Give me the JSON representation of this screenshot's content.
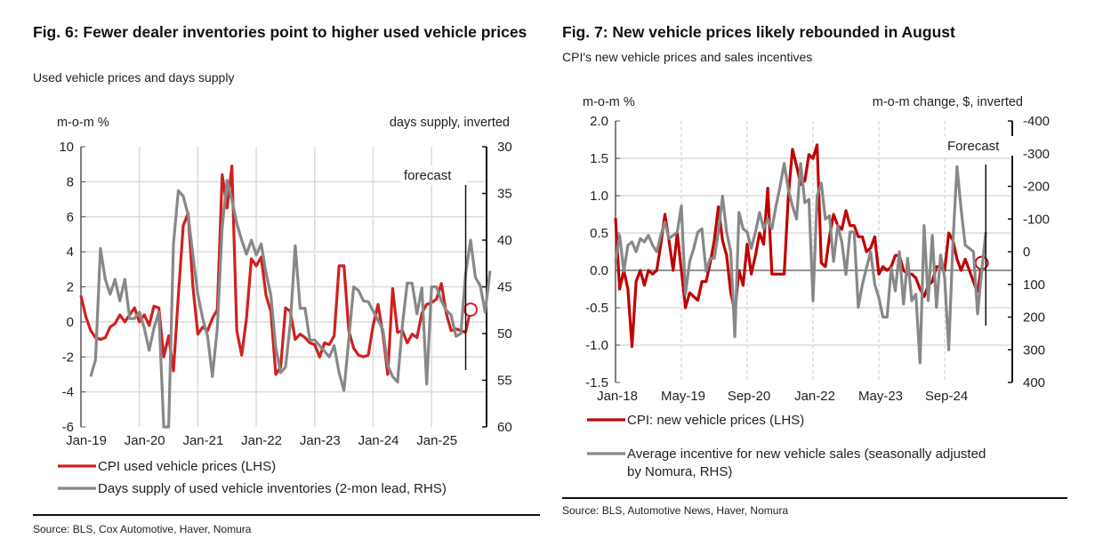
{
  "chart_data": [
    {
      "id": "fig6",
      "type": "line",
      "title": "Fig. 6: Fewer dealer inventories point to higher used vehicle prices",
      "subtitle": "Used vehicle prices and days supply",
      "ylabel_left": "m-o-m %",
      "ylabel_right": "days supply, inverted",
      "ylim_left": [
        -6,
        10
      ],
      "yticks_left": [
        "10",
        "8",
        "6",
        "4",
        "2",
        "0",
        "-2",
        "-4",
        "-6"
      ],
      "ylim_right_inverted": [
        30,
        60
      ],
      "yticks_right": [
        "30",
        "35",
        "40",
        "45",
        "50",
        "55",
        "60"
      ],
      "x_start": "Jan-19",
      "x_frequency": "monthly",
      "xticks": [
        "Jan-19",
        "Jan-20",
        "Jan-21",
        "Jan-22",
        "Jan-23",
        "Jan-24",
        "Jan-25"
      ],
      "grid": true,
      "annotation": "forecast",
      "forecast_start_month_index": 79,
      "series": [
        {
          "name": "CPI used vehicle prices (LHS)",
          "color": "#d02020",
          "axis": "left",
          "start_month_index": 0,
          "values": [
            1.5,
            0.3,
            -0.5,
            -0.9,
            -1.0,
            -0.9,
            -0.3,
            -0.1,
            0.4,
            0.0,
            0.4,
            0.8,
            0.0,
            0.4,
            -0.2,
            0.9,
            0.8,
            -2.0,
            -0.8,
            -2.8,
            1.5,
            5.5,
            6.2,
            2.0,
            -0.7,
            -0.3,
            -0.5,
            0.2,
            0.7,
            8.4,
            6.5,
            8.9,
            -0.5,
            -1.9,
            0.2,
            3.6,
            3.2,
            3.7,
            1.5,
            0.6,
            -3.0,
            -2.6,
            0.8,
            0.6,
            -1.0,
            -0.7,
            -0.9,
            -1.2,
            -1.3,
            -2.0,
            -1.2,
            -1.3,
            -0.8,
            3.2,
            3.2,
            -0.5,
            -1.5,
            -1.9,
            -2.0,
            -1.9,
            -0.2,
            1.0,
            -0.7,
            -3.0,
            1.9,
            -0.6,
            -0.5,
            -1.2,
            -0.7,
            -0.9,
            0.5,
            1.0,
            1.1,
            1.3,
            2.2,
            0.5,
            -0.5,
            -0.4,
            -0.5,
            -0.6
          ],
          "forecast_value": 0.7
        },
        {
          "name": "Days supply of used vehicle inventories (2-mon lead, RHS)",
          "color": "#888888",
          "axis": "right",
          "start_month_index": 2,
          "values": [
            54.6,
            52.8,
            40.9,
            44.2,
            45.8,
            44.2,
            46.5,
            44.2,
            48.4,
            48.4,
            47.7,
            49.4,
            51.8,
            49.4,
            47.7,
            60.0,
            60.0,
            40.4,
            34.7,
            35.3,
            37.3,
            41.6,
            45.8,
            48.4,
            50.3,
            54.6,
            49.4,
            38.6,
            33.6,
            35.7,
            38.2,
            40.0,
            41.5,
            40.0,
            41.6,
            40.4,
            43.5,
            45.9,
            51.5,
            54.2,
            53.6,
            48.9,
            40.6,
            47.3,
            47.3,
            50.7,
            50.7,
            51.3,
            51.9,
            52.5,
            51.3,
            54.2,
            56.1,
            50.6,
            45.0,
            45.4,
            46.5,
            46.6,
            47.6,
            48.6,
            49.6,
            53.4,
            54.6,
            55.2,
            49.1,
            44.6,
            44.6,
            47.9,
            45.1,
            55.4,
            45.0,
            45.0,
            46.5,
            47.5,
            48.0,
            50.3,
            50.0,
            43.6,
            40.0,
            44.0,
            44.9,
            47.7,
            43.3
          ]
        }
      ],
      "legend": [
        "CPI used vehicle prices (LHS)",
        "Days supply of used vehicle inventories (2-mon lead, RHS)"
      ],
      "legend_position": "bottom",
      "source": "Source: BLS, Cox Automotive, Haver, Nomura"
    },
    {
      "id": "fig7",
      "type": "line",
      "title": "Fig. 7: New vehicle prices likely rebounded in August",
      "subtitle": "CPI's new vehicle prices and sales incentives",
      "ylabel_left": "m-o-m %",
      "ylabel_right": "m-o-m change, $, inverted",
      "ylim_left": [
        -1.5,
        2.0
      ],
      "yticks_left": [
        "2.0",
        "1.5",
        "1.0",
        "0.5",
        "0.0",
        "-0.5",
        "-1.0",
        "-1.5"
      ],
      "ylim_right_inverted": [
        -400,
        400
      ],
      "yticks_right": [
        "-400",
        "-300",
        "-200",
        "-100",
        "0",
        "100",
        "200",
        "300",
        "400"
      ],
      "x_start": "Jan-18",
      "x_frequency": "monthly",
      "xticks": [
        "Jan-18",
        "May-19",
        "Sep-20",
        "Jan-22",
        "May-23",
        "Sep-24"
      ],
      "grid": true,
      "annotation": "Forecast",
      "forecast_start_month_index": 90,
      "series": [
        {
          "name": "CPI: new vehicle prices (LHS)",
          "color": "#c00000",
          "axis": "left",
          "start_month_index": 0,
          "values": [
            0.7,
            -0.25,
            0.0,
            -0.25,
            -1.02,
            -0.15,
            0.0,
            -0.2,
            0.0,
            -0.05,
            0.0,
            0.35,
            0.75,
            0.4,
            0.0,
            0.5,
            0.0,
            -0.5,
            -0.3,
            -0.35,
            -0.4,
            -0.15,
            -0.15,
            0.1,
            0.4,
            0.85,
            0.4,
            0.2,
            -0.3,
            -0.55,
            0.0,
            -0.2,
            0.35,
            -0.05,
            0.2,
            0.5,
            0.35,
            1.1,
            -0.05,
            -0.05,
            -0.05,
            -0.05,
            1.0,
            1.62,
            1.4,
            1.15,
            1.2,
            1.55,
            1.5,
            1.68,
            0.1,
            0.05,
            0.45,
            0.75,
            0.6,
            0.55,
            0.8,
            0.6,
            0.6,
            0.45,
            0.45,
            0.25,
            0.3,
            0.45,
            -0.05,
            0.05,
            0.0,
            0.05,
            0.2,
            0.2,
            0.0,
            -0.05,
            -0.05,
            -0.1,
            -0.25,
            -0.35,
            -0.2,
            -0.15,
            0.05,
            0.05,
            0.0,
            0.5,
            0.4,
            0.15,
            0.0,
            0.15,
            0.0,
            -0.15,
            -0.3
          ],
          "forecast_value": 0.1
        },
        {
          "name": "Average incentive for new vehicle sales (seasonally adjusted by Nomura, RHS)",
          "color": "#888888",
          "axis": "right",
          "start_month_index": 0,
          "values": [
            30,
            -50,
            60,
            -20,
            -30,
            0,
            -40,
            -30,
            -50,
            -20,
            0,
            -50,
            -90,
            -40,
            -50,
            -60,
            -140,
            130,
            30,
            -10,
            -60,
            -70,
            60,
            20,
            20,
            -60,
            -170,
            -60,
            0,
            260,
            -120,
            -70,
            -60,
            -10,
            -60,
            -120,
            -70,
            -100,
            -70,
            -140,
            -200,
            -270,
            -190,
            -140,
            -100,
            -270,
            -150,
            -160,
            150,
            -170,
            -210,
            -100,
            -110,
            30,
            -80,
            -30,
            70,
            -60,
            -60,
            170,
            100,
            50,
            0,
            100,
            140,
            200,
            200,
            50,
            120,
            0,
            160,
            20,
            150,
            130,
            340,
            -80,
            150,
            -50,
            170,
            10,
            80,
            300,
            -30,
            -260,
            -130,
            -20,
            -10,
            0,
            190,
            60,
            -60
          ]
        }
      ],
      "legend": [
        "CPI: new vehicle prices (LHS)",
        "Average incentive for new vehicle sales (seasonally adjusted by Nomura, RHS)"
      ],
      "legend_position": "bottom",
      "source": "Source: BLS, Automotive News, Haver, Nomura"
    }
  ]
}
